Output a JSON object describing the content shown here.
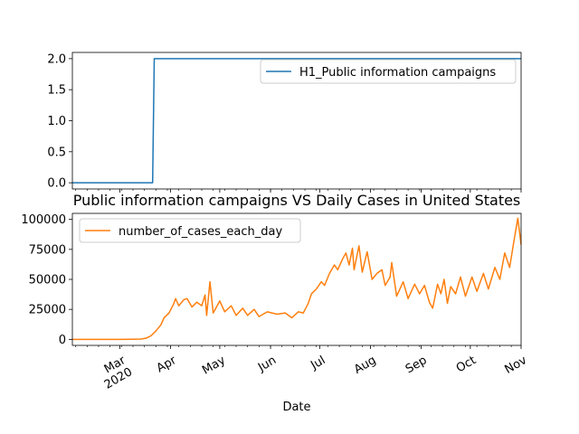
{
  "chart_data": [
    {
      "type": "line",
      "title": "",
      "xlabel": "",
      "ylabel": "",
      "ylim": [
        -0.1,
        2.1
      ],
      "yticks": [
        "0.0",
        "0.5",
        "1.0",
        "1.5",
        "2.0"
      ],
      "legend": "top-right",
      "series": [
        {
          "name": "H1_Public information campaigns",
          "color": "#1f77b4",
          "points": [
            [
              "2020-02-01",
              0
            ],
            [
              "2020-03-21",
              0
            ],
            [
              "2020-03-22",
              2
            ],
            [
              "2020-11-01",
              2
            ]
          ]
        }
      ]
    },
    {
      "type": "line",
      "title": "Public information campaigns VS Daily Cases in United States",
      "xlabel": "Date",
      "ylabel": "",
      "ylim": [
        -5000,
        105000
      ],
      "yticks": [
        "0",
        "25000",
        "50000",
        "75000",
        "100000"
      ],
      "legend": "top-left",
      "x_ticks": [
        "Mar\n2020",
        "Apr",
        "May",
        "Jun",
        "Jul",
        "Aug",
        "Sep",
        "Oct",
        "Nov"
      ],
      "series": [
        {
          "name": "number_of_cases_each_day",
          "color": "#ff7f0e",
          "points": [
            [
              "2020-02-01",
              0
            ],
            [
              "2020-02-15",
              0
            ],
            [
              "2020-02-29",
              0
            ],
            [
              "2020-03-07",
              100
            ],
            [
              "2020-03-14",
              300
            ],
            [
              "2020-03-17",
              1000
            ],
            [
              "2020-03-20",
              3000
            ],
            [
              "2020-03-23",
              7000
            ],
            [
              "2020-03-26",
              12000
            ],
            [
              "2020-03-28",
              18000
            ],
            [
              "2020-03-31",
              22000
            ],
            [
              "2020-04-03",
              30000
            ],
            [
              "2020-04-04",
              34000
            ],
            [
              "2020-04-06",
              28000
            ],
            [
              "2020-04-09",
              33000
            ],
            [
              "2020-04-11",
              34000
            ],
            [
              "2020-04-14",
              27000
            ],
            [
              "2020-04-17",
              31000
            ],
            [
              "2020-04-20",
              28000
            ],
            [
              "2020-04-22",
              37000
            ],
            [
              "2020-04-23",
              20000
            ],
            [
              "2020-04-25",
              48000
            ],
            [
              "2020-04-27",
              22000
            ],
            [
              "2020-05-01",
              32000
            ],
            [
              "2020-05-04",
              23000
            ],
            [
              "2020-05-08",
              28000
            ],
            [
              "2020-05-11",
              20000
            ],
            [
              "2020-05-15",
              26000
            ],
            [
              "2020-05-18",
              20000
            ],
            [
              "2020-05-22",
              25000
            ],
            [
              "2020-05-25",
              19000
            ],
            [
              "2020-05-30",
              23000
            ],
            [
              "2020-06-05",
              21000
            ],
            [
              "2020-06-10",
              22000
            ],
            [
              "2020-06-14",
              18000
            ],
            [
              "2020-06-18",
              23000
            ],
            [
              "2020-06-21",
              22000
            ],
            [
              "2020-06-24",
              30000
            ],
            [
              "2020-06-26",
              38000
            ],
            [
              "2020-06-29",
              42000
            ],
            [
              "2020-07-02",
              48000
            ],
            [
              "2020-07-04",
              45000
            ],
            [
              "2020-07-07",
              55000
            ],
            [
              "2020-07-10",
              62000
            ],
            [
              "2020-07-12",
              58000
            ],
            [
              "2020-07-15",
              67000
            ],
            [
              "2020-07-17",
              72000
            ],
            [
              "2020-07-19",
              62000
            ],
            [
              "2020-07-21",
              76000
            ],
            [
              "2020-07-22",
              58000
            ],
            [
              "2020-07-25",
              78000
            ],
            [
              "2020-07-27",
              56000
            ],
            [
              "2020-07-30",
              73000
            ],
            [
              "2020-08-02",
              50000
            ],
            [
              "2020-08-05",
              55000
            ],
            [
              "2020-08-08",
              58000
            ],
            [
              "2020-08-10",
              45000
            ],
            [
              "2020-08-13",
              52000
            ],
            [
              "2020-08-14",
              64000
            ],
            [
              "2020-08-17",
              36000
            ],
            [
              "2020-08-21",
              48000
            ],
            [
              "2020-08-24",
              34000
            ],
            [
              "2020-08-28",
              46000
            ],
            [
              "2020-08-31",
              38000
            ],
            [
              "2020-09-03",
              45000
            ],
            [
              "2020-09-06",
              31000
            ],
            [
              "2020-09-08",
              26000
            ],
            [
              "2020-09-11",
              46000
            ],
            [
              "2020-09-13",
              38000
            ],
            [
              "2020-09-15",
              50000
            ],
            [
              "2020-09-17",
              30000
            ],
            [
              "2020-09-19",
              44000
            ],
            [
              "2020-09-22",
              38000
            ],
            [
              "2020-09-25",
              52000
            ],
            [
              "2020-09-28",
              36000
            ],
            [
              "2020-10-02",
              52000
            ],
            [
              "2020-10-05",
              40000
            ],
            [
              "2020-10-09",
              55000
            ],
            [
              "2020-10-12",
              42000
            ],
            [
              "2020-10-16",
              60000
            ],
            [
              "2020-10-19",
              50000
            ],
            [
              "2020-10-22",
              72000
            ],
            [
              "2020-10-25",
              60000
            ],
            [
              "2020-10-28",
              85000
            ],
            [
              "2020-10-30",
              101000
            ],
            [
              "2020-11-01",
              79000
            ]
          ]
        }
      ]
    }
  ]
}
